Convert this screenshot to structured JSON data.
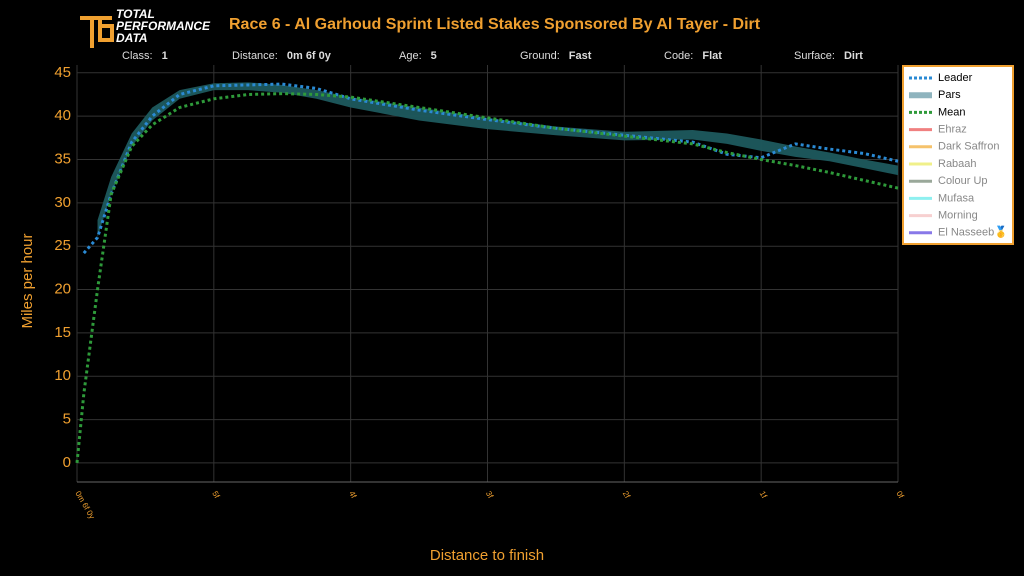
{
  "logo": {
    "line1": "TOTAL",
    "line2": "PERFORMANCE",
    "line3": "DATA"
  },
  "info": [
    {
      "label": "Class:",
      "value": "1"
    },
    {
      "label": "Distance:",
      "value": "0m 6f 0y"
    },
    {
      "label": "Age:",
      "value": "5"
    },
    {
      "label": "Ground:",
      "value": "Fast"
    },
    {
      "label": "Code:",
      "value": "Flat"
    },
    {
      "label": "Surface:",
      "value": "Dirt"
    }
  ],
  "chart_data": {
    "type": "line",
    "title": "Race 6 - Al Garhoud Sprint Listed Stakes Sponsored By Al Tayer - Dirt",
    "x_label": "Distance to finish",
    "y_label": "Miles per hour",
    "x": [
      6,
      5.95,
      5.85,
      5.75,
      5.6,
      5.45,
      5.25,
      5,
      4.75,
      4.5,
      4.25,
      4,
      3.5,
      3,
      2.5,
      2,
      1.5,
      1.25,
      1,
      0.75,
      0.5,
      0.25,
      0
    ],
    "xlim": [
      6,
      0
    ],
    "xticks": [
      {
        "value": 6,
        "label": "0m 6f 0y"
      },
      {
        "value": 5,
        "label": "5f"
      },
      {
        "value": 4,
        "label": "4f"
      },
      {
        "value": 3,
        "label": "3f"
      },
      {
        "value": 2,
        "label": "2f"
      },
      {
        "value": 1,
        "label": "1f"
      },
      {
        "value": 0,
        "label": "0f"
      }
    ],
    "ylim": [
      -2.2,
      45.9
    ],
    "yticks": [
      0,
      5,
      10,
      15,
      20,
      25,
      30,
      35,
      40,
      45
    ],
    "grid": true,
    "series": [
      {
        "name": "Leader",
        "color": "#2a8ad4",
        "style": "dotted",
        "values": [
          null,
          24.2,
          26,
          31,
          37,
          40,
          42.5,
          43.5,
          43.6,
          43.7,
          43.2,
          42,
          40.7,
          39.6,
          38.6,
          37.8,
          37,
          35.6,
          35.2,
          36.8,
          36.2,
          35.7,
          34.8
        ]
      },
      {
        "name": "Pars",
        "color": "#1d5a5e",
        "style": "band",
        "lower": [
          null,
          null,
          26,
          31,
          36.5,
          39.5,
          42,
          43,
          43,
          42.7,
          42,
          41,
          39.5,
          38.5,
          37.8,
          37.2,
          37.3,
          36.8,
          36,
          35.3,
          34.8,
          34,
          33.2
        ],
        "upper": [
          null,
          null,
          28,
          33,
          38,
          41,
          43,
          43.8,
          43.9,
          43.6,
          43,
          42.2,
          41,
          39.8,
          38.8,
          38.2,
          38.4,
          38,
          37.3,
          36.5,
          35.8,
          35,
          34.3
        ]
      },
      {
        "name": "Mean",
        "color": "#2e9a3a",
        "style": "dotted",
        "values": [
          0,
          8,
          20,
          31,
          36.5,
          39,
          41,
          42,
          42.5,
          42.6,
          42.5,
          42.2,
          41,
          39.8,
          38.6,
          37.7,
          36.8,
          35.8,
          35,
          34.3,
          33.5,
          32.6,
          31.7
        ]
      }
    ],
    "hidden_series": [
      {
        "name": "Ehraz",
        "color": "#f08080"
      },
      {
        "name": "Dark Saffron",
        "color": "#f5c26b"
      },
      {
        "name": "Rabaah",
        "color": "#f0f08a"
      },
      {
        "name": "Colour Up",
        "color": "#9aa89a"
      },
      {
        "name": "Mufasa",
        "color": "#8ef0f0"
      },
      {
        "name": "Morning",
        "color": "#f7d0d0"
      },
      {
        "name": "El Nasseeb🥇",
        "color": "#8878e8"
      }
    ]
  }
}
